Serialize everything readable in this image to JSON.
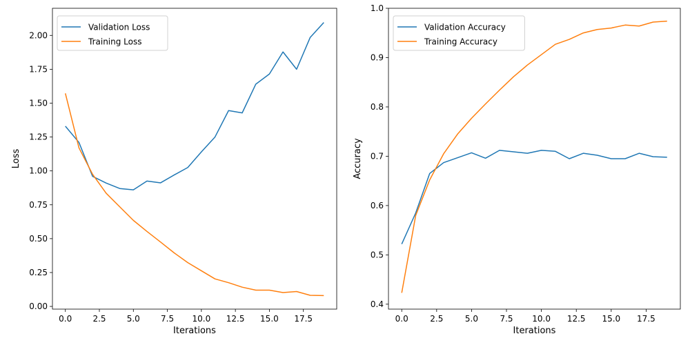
{
  "chart_data": [
    {
      "type": "line",
      "title": "",
      "xlabel": "Iterations",
      "ylabel": "Loss",
      "xlim": [
        -0.95,
        19.95
      ],
      "ylim": [
        -0.02,
        2.2
      ],
      "xticks": [
        0.0,
        2.5,
        5.0,
        7.5,
        10.0,
        12.5,
        15.0,
        17.5
      ],
      "xtick_labels": [
        "0.0",
        "2.5",
        "5.0",
        "7.5",
        "10.0",
        "12.5",
        "15.0",
        "17.5"
      ],
      "yticks": [
        0.0,
        0.25,
        0.5,
        0.75,
        1.0,
        1.25,
        1.5,
        1.75,
        2.0
      ],
      "ytick_labels": [
        "0.00",
        "0.25",
        "0.50",
        "0.75",
        "1.00",
        "1.25",
        "1.50",
        "1.75",
        "2.00"
      ],
      "grid": false,
      "legend_position": "upper-left",
      "x": [
        0,
        1,
        2,
        3,
        4,
        5,
        6,
        7,
        8,
        9,
        10,
        11,
        12,
        13,
        14,
        15,
        16,
        17,
        18,
        19
      ],
      "series": [
        {
          "name": "Validation Loss",
          "color": "#1f77b4",
          "values": [
            1.33,
            1.21,
            0.96,
            0.91,
            0.87,
            0.86,
            0.925,
            0.912,
            0.97,
            1.025,
            1.14,
            1.25,
            1.445,
            1.428,
            1.64,
            1.715,
            1.878,
            1.75,
            1.985,
            2.095
          ]
        },
        {
          "name": "Training Loss",
          "color": "#ff7f0e",
          "values": [
            1.572,
            1.17,
            0.975,
            0.835,
            0.735,
            0.635,
            0.553,
            0.475,
            0.395,
            0.323,
            0.263,
            0.203,
            0.175,
            0.142,
            0.12,
            0.12,
            0.102,
            0.11,
            0.082,
            0.08
          ]
        }
      ]
    },
    {
      "type": "line",
      "title": "",
      "xlabel": "Iterations",
      "ylabel": "Accuracy",
      "xlim": [
        -0.95,
        19.95
      ],
      "ylim": [
        0.39,
        1.0
      ],
      "xticks": [
        0.0,
        2.5,
        5.0,
        7.5,
        10.0,
        12.5,
        15.0,
        17.5
      ],
      "xtick_labels": [
        "0.0",
        "2.5",
        "5.0",
        "7.5",
        "10.0",
        "12.5",
        "15.0",
        "17.5"
      ],
      "yticks": [
        0.4,
        0.5,
        0.6,
        0.7,
        0.8,
        0.9,
        1.0
      ],
      "ytick_labels": [
        "0.4",
        "0.5",
        "0.6",
        "0.7",
        "0.8",
        "0.9",
        "1.0"
      ],
      "grid": false,
      "legend_position": "upper-left",
      "x": [
        0,
        1,
        2,
        3,
        4,
        5,
        6,
        7,
        8,
        9,
        10,
        11,
        12,
        13,
        14,
        15,
        16,
        17,
        18,
        19
      ],
      "series": [
        {
          "name": "Validation Accuracy",
          "color": "#1f77b4",
          "values": [
            0.522,
            0.585,
            0.665,
            0.687,
            0.697,
            0.707,
            0.696,
            0.712,
            0.709,
            0.706,
            0.712,
            0.71,
            0.695,
            0.706,
            0.702,
            0.695,
            0.695,
            0.706,
            0.699,
            0.698
          ]
        },
        {
          "name": "Training Accuracy",
          "color": "#ff7f0e",
          "values": [
            0.423,
            0.58,
            0.652,
            0.705,
            0.745,
            0.777,
            0.806,
            0.834,
            0.861,
            0.885,
            0.906,
            0.927,
            0.937,
            0.95,
            0.957,
            0.96,
            0.966,
            0.964,
            0.972,
            0.974
          ]
        }
      ]
    }
  ]
}
